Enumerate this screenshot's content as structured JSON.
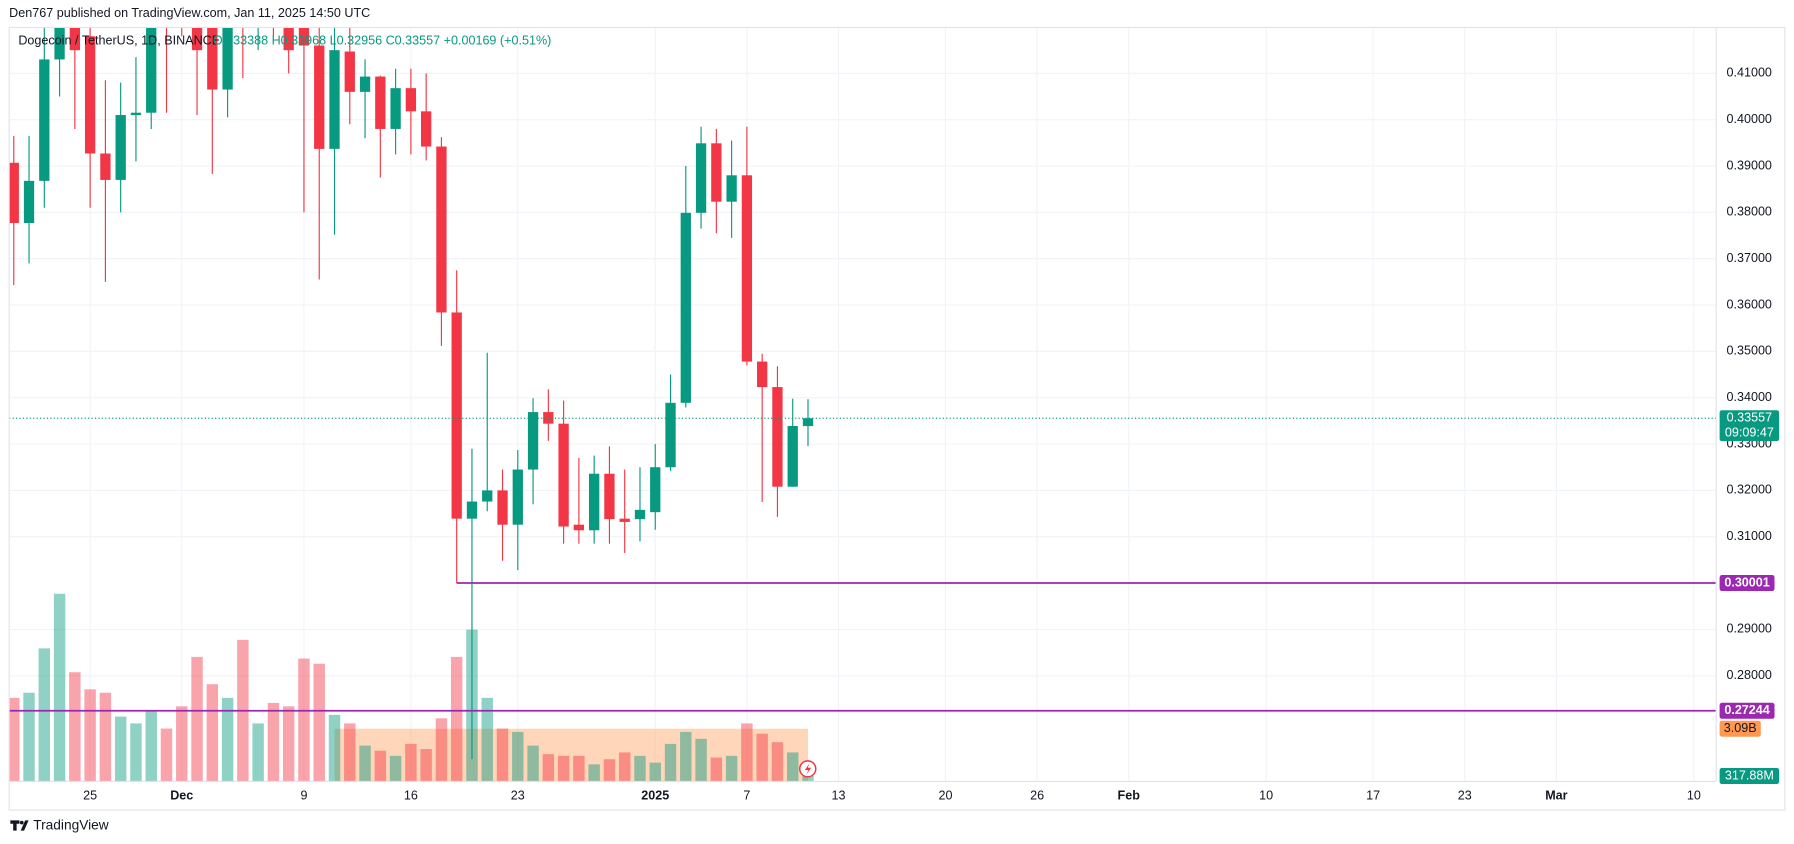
{
  "chart_data": {
    "type": "candlestick",
    "publisher": "Den767 published on TradingView.com, Jan 11, 2025 14:50 UTC",
    "symbol": "Dogecoin / TetherUS, 1D, BINANCE",
    "ohlc_legend": "O0.33388 H0.33968 L0.32956 C0.33557 +0.00169 (+0.51%)",
    "brand": "TradingView",
    "up_color": "#089981",
    "down_color": "#f23645",
    "x": [
      "2024-11-20",
      "2024-11-21",
      "2024-11-22",
      "2024-11-23",
      "2024-11-24",
      "2024-11-25",
      "2024-11-26",
      "2024-11-27",
      "2024-11-28",
      "2024-11-29",
      "2024-11-30",
      "2024-12-01",
      "2024-12-02",
      "2024-12-03",
      "2024-12-04",
      "2024-12-05",
      "2024-12-06",
      "2024-12-07",
      "2024-12-08",
      "2024-12-09",
      "2024-12-10",
      "2024-12-11",
      "2024-12-12",
      "2024-12-13",
      "2024-12-14",
      "2024-12-15",
      "2024-12-16",
      "2024-12-17",
      "2024-12-18",
      "2024-12-19",
      "2024-12-20",
      "2024-12-21",
      "2024-12-22",
      "2024-12-23",
      "2024-12-24",
      "2024-12-25",
      "2024-12-26",
      "2024-12-27",
      "2024-12-28",
      "2024-12-29",
      "2024-12-30",
      "2024-12-31",
      "2025-01-01",
      "2025-01-02",
      "2025-01-03",
      "2025-01-04",
      "2025-01-05",
      "2025-01-06",
      "2025-01-07",
      "2025-01-08",
      "2025-01-09",
      "2025-01-10",
      "2025-01-11"
    ],
    "open": [
      0.3907,
      0.3777,
      0.3868,
      0.413,
      0.43,
      0.418,
      0.3927,
      0.387,
      0.401,
      0.4015,
      0.43,
      0.432,
      0.425,
      0.43,
      0.4065,
      0.43,
      0.42,
      0.43,
      0.425,
      0.43,
      0.416,
      0.3937,
      0.4147,
      0.406,
      0.4093,
      0.398,
      0.4068,
      0.4018,
      0.3942,
      0.3584,
      0.3139,
      0.3176,
      0.32,
      0.3126,
      0.3245,
      0.3369,
      0.3344,
      0.3126,
      0.3114,
      0.3236,
      0.3139,
      0.3138,
      0.3153,
      0.325,
      0.3389,
      0.3799,
      0.3949,
      0.3823,
      0.388,
      0.3478,
      0.3423,
      0.3208,
      0.33388
    ],
    "high": [
      0.3965,
      0.3965,
      0.42,
      0.435,
      0.44,
      0.432,
      0.4085,
      0.408,
      0.4135,
      0.435,
      0.44,
      0.438,
      0.44,
      0.44,
      0.44,
      0.44,
      0.445,
      0.44,
      0.435,
      0.44,
      0.42,
      0.42,
      0.42,
      0.413,
      0.4095,
      0.411,
      0.411,
      0.41,
      0.3962,
      0.3675,
      0.329,
      0.3497,
      0.3245,
      0.3287,
      0.3399,
      0.3418,
      0.3394,
      0.327,
      0.3275,
      0.3295,
      0.3245,
      0.325,
      0.33,
      0.345,
      0.39,
      0.3985,
      0.398,
      0.3955,
      0.3985,
      0.3495,
      0.3468,
      0.3398,
      0.33968
    ],
    "low": [
      0.3643,
      0.369,
      0.381,
      0.405,
      0.398,
      0.381,
      0.365,
      0.38,
      0.391,
      0.398,
      0.4015,
      0.418,
      0.401,
      0.3883,
      0.4005,
      0.409,
      0.415,
      0.418,
      0.41,
      0.38,
      0.3655,
      0.3752,
      0.399,
      0.396,
      0.3875,
      0.3925,
      0.3925,
      0.3912,
      0.3512,
      0.3,
      0.262,
      0.3155,
      0.3048,
      0.3028,
      0.317,
      0.3307,
      0.3085,
      0.3085,
      0.3085,
      0.3085,
      0.3065,
      0.309,
      0.3115,
      0.3242,
      0.3379,
      0.3765,
      0.3755,
      0.3745,
      0.347,
      0.3175,
      0.3143,
      0.3208,
      0.32956
    ],
    "close": [
      0.3777,
      0.3868,
      0.413,
      0.425,
      0.415,
      0.3927,
      0.387,
      0.401,
      0.4015,
      0.425,
      0.42,
      0.425,
      0.415,
      0.4065,
      0.43,
      0.42,
      0.43,
      0.425,
      0.415,
      0.416,
      0.3937,
      0.415,
      0.406,
      0.4093,
      0.398,
      0.4068,
      0.4018,
      0.3942,
      0.3584,
      0.3139,
      0.3176,
      0.32,
      0.3126,
      0.3245,
      0.3369,
      0.3344,
      0.3122,
      0.3114,
      0.3236,
      0.3138,
      0.3132,
      0.3158,
      0.325,
      0.3389,
      0.3799,
      0.3949,
      0.3823,
      0.388,
      0.3478,
      0.3423,
      0.3208,
      0.3339,
      0.33557
    ],
    "volume": [
      4900000000,
      5200000000,
      7800000000,
      11000000000,
      6400000000,
      5400000000,
      5200000000,
      3800000000,
      3400000000,
      4100000000,
      3100000000,
      4400000000,
      7300000000,
      5700000000,
      4900000000,
      8300000000,
      3400000000,
      4600000000,
      4400000000,
      7200000000,
      6900000000,
      3900000000,
      3400000000,
      2100000000,
      1800000000,
      1500000000,
      2200000000,
      1900000000,
      3700000000,
      7300000000,
      8900000000,
      4900000000,
      3100000000,
      2900000000,
      2100000000,
      1600000000,
      1500000000,
      1500000000,
      1000000000,
      1300000000,
      1700000000,
      1500000000,
      1100000000,
      2200000000,
      2900000000,
      2500000000,
      1400000000,
      1500000000,
      3400000000,
      2800000000,
      2300000000,
      1700000000,
      317880000
    ],
    "volume_last_label": "317.88M",
    "volume_ylim": [
      0,
      44200000000
    ],
    "volume_band": {
      "value": 3090000000,
      "label": "3.09B",
      "from": "2024-12-11",
      "to": "2025-01-11",
      "color": "#ff9850"
    },
    "ylim": [
      0.2572,
      0.4199
    ],
    "yticks": [
      {
        "value": 0.28,
        "label": "0.28000"
      },
      {
        "value": 0.29,
        "label": "0.29000"
      },
      {
        "value": 0.31,
        "label": "0.31000"
      },
      {
        "value": 0.32,
        "label": "0.32000"
      },
      {
        "value": 0.33,
        "label": "0.33000"
      },
      {
        "value": 0.34,
        "label": "0.34000"
      },
      {
        "value": 0.35,
        "label": "0.35000"
      },
      {
        "value": 0.36,
        "label": "0.36000"
      },
      {
        "value": 0.37,
        "label": "0.37000"
      },
      {
        "value": 0.38,
        "label": "0.38000"
      },
      {
        "value": 0.39,
        "label": "0.39000"
      },
      {
        "value": 0.4,
        "label": "0.40000"
      },
      {
        "value": 0.41,
        "label": "0.41000"
      }
    ],
    "xticks": [
      {
        "value": "2024-11-25",
        "label": "25"
      },
      {
        "value": "2024-12-01",
        "label": "Dec"
      },
      {
        "value": "2024-12-09",
        "label": "9"
      },
      {
        "value": "2024-12-16",
        "label": "16"
      },
      {
        "value": "2024-12-23",
        "label": "23"
      },
      {
        "value": "2025-01-01",
        "label": "2025"
      },
      {
        "value": "2025-01-07",
        "label": "7"
      },
      {
        "value": "2025-01-13",
        "label": "13"
      },
      {
        "value": "2025-01-20",
        "label": "20"
      },
      {
        "value": "2025-01-26",
        "label": "26"
      },
      {
        "value": "2025-02-01",
        "label": "Feb"
      },
      {
        "value": "2025-02-10",
        "label": "10"
      },
      {
        "value": "2025-02-17",
        "label": "17"
      },
      {
        "value": "2025-02-23",
        "label": "23"
      },
      {
        "value": "2025-03-01",
        "label": "Mar"
      },
      {
        "value": "2025-03-10",
        "label": "10"
      }
    ],
    "grid": true,
    "last_price": 0.33557,
    "countdown": "09:09:47",
    "level_color": "#9c27b0",
    "levels": [
      {
        "value": 0.30001,
        "from": "2024-12-19"
      },
      {
        "value": 0.27244
      }
    ]
  }
}
